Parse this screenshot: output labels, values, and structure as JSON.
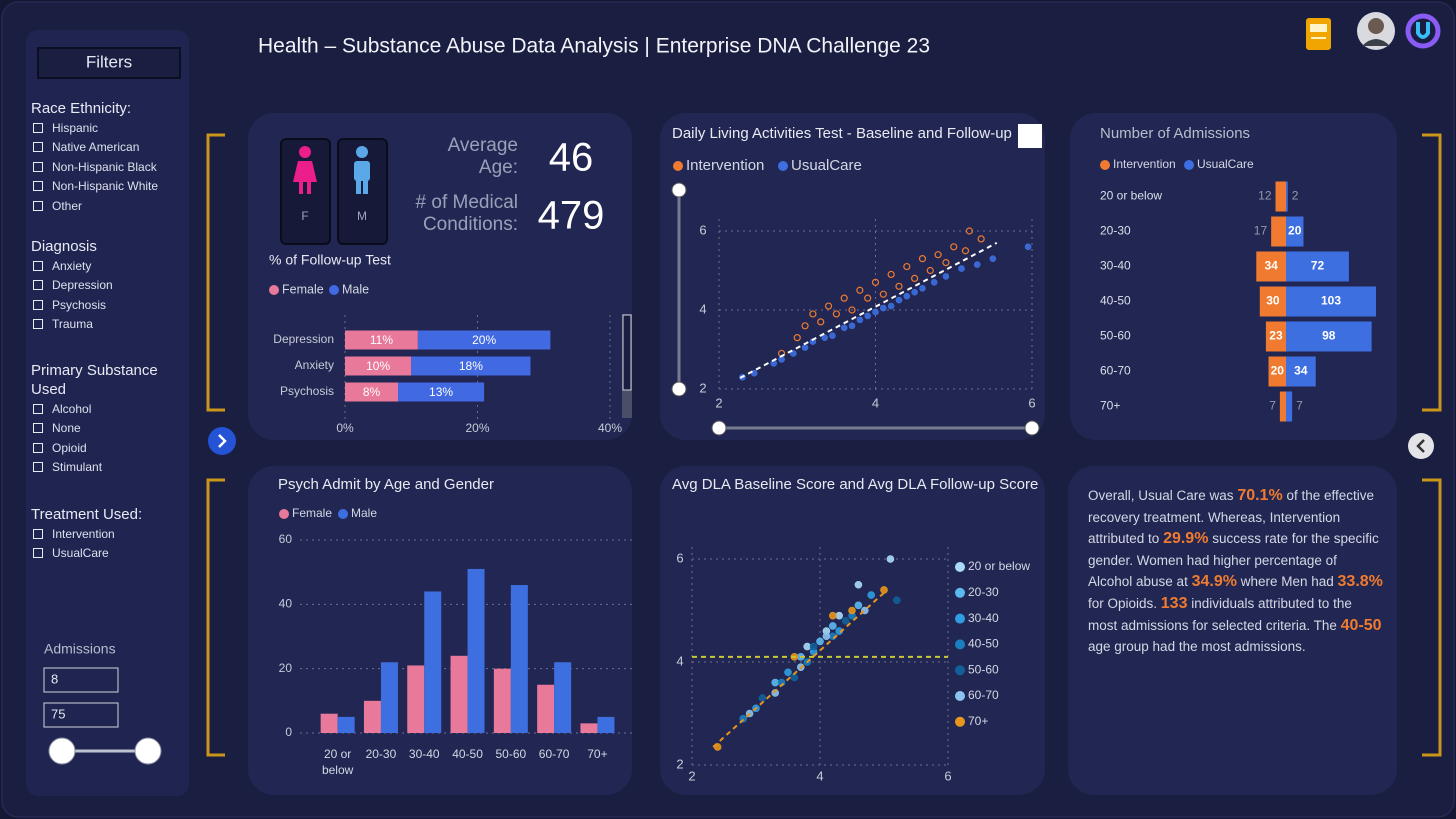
{
  "header": {
    "title": "Health – Substance Abuse Data Analysis | Enterprise DNA Challenge 23"
  },
  "filters": {
    "title": "Filters",
    "groups": [
      {
        "label": "Race Ethnicity:",
        "options": [
          "Hispanic",
          "Native American",
          "Non-Hispanic Black",
          "Non-Hispanic White",
          "Other"
        ]
      },
      {
        "label": "Diagnosis",
        "options": [
          "Anxiety",
          "Depression",
          "Psychosis",
          "Trauma"
        ]
      },
      {
        "label": "Primary Substance Used",
        "options": [
          "Alcohol",
          "None",
          "Opioid",
          "Stimulant"
        ]
      },
      {
        "label": "Treatment Used:",
        "options": [
          "Intervention",
          "UsualCare"
        ]
      }
    ],
    "admissions": {
      "label": "Admissions",
      "min": 8,
      "max": 75
    }
  },
  "gender_icons": [
    "F",
    "M"
  ],
  "kpis": [
    {
      "label": "Average Age:",
      "value": 46
    },
    {
      "label": "# of Medical Conditions:",
      "value": 479
    }
  ],
  "chart_data": [
    {
      "type": "bar",
      "orientation": "horizontal",
      "stacked": true,
      "title": "% of Follow-up Test",
      "categories": [
        "Depression",
        "Anxiety",
        "Psychosis"
      ],
      "series": [
        {
          "name": "Female",
          "color": "#e8799b",
          "values": [
            11,
            10,
            8
          ],
          "value_labels": [
            "11%",
            "10%",
            "8%"
          ]
        },
        {
          "name": "Male",
          "color": "#4169e1",
          "values": [
            20,
            18,
            13
          ],
          "value_labels": [
            "20%",
            "18%",
            "13%"
          ]
        }
      ],
      "xlim": [
        0,
        40
      ],
      "xticks": [
        {
          "value": 0,
          "label": "0%"
        },
        {
          "value": 20,
          "label": "20%"
        },
        {
          "value": 40,
          "label": "40%"
        }
      ],
      "grid": true
    },
    {
      "type": "scatter",
      "title": "Daily Living Activities Test - Baseline and Follow-up",
      "series": [
        {
          "name": "Intervention",
          "color": "#f07a2f",
          "marker": "open",
          "x": [
            2.8,
            3.0,
            3.1,
            3.2,
            3.3,
            3.4,
            3.5,
            3.6,
            3.7,
            3.8,
            3.9,
            4.0,
            4.1,
            4.2,
            4.3,
            4.4,
            4.5,
            4.6,
            4.7,
            4.8,
            4.9,
            5.0,
            5.15,
            5.2,
            5.35
          ],
          "y": [
            2.9,
            3.3,
            3.6,
            3.9,
            3.7,
            4.1,
            3.9,
            4.3,
            4.0,
            4.5,
            4.3,
            4.7,
            4.4,
            4.9,
            4.6,
            5.1,
            4.8,
            5.3,
            5.0,
            5.4,
            5.2,
            5.6,
            5.5,
            6.0,
            5.8
          ]
        },
        {
          "name": "UsualCare",
          "color": "#3d6fe0",
          "marker": "filled",
          "x": [
            2.3,
            2.45,
            2.7,
            2.8,
            2.95,
            3.1,
            3.2,
            3.35,
            3.45,
            3.6,
            3.7,
            3.8,
            3.9,
            4.0,
            4.1,
            4.2,
            4.3,
            4.4,
            4.5,
            4.6,
            4.75,
            4.9,
            5.1,
            5.3,
            5.5,
            5.95
          ],
          "y": [
            2.3,
            2.4,
            2.65,
            2.75,
            2.9,
            3.05,
            3.2,
            3.3,
            3.35,
            3.55,
            3.6,
            3.75,
            3.85,
            3.95,
            4.05,
            4.1,
            4.25,
            4.35,
            4.45,
            4.55,
            4.7,
            4.85,
            5.05,
            5.15,
            5.3,
            5.6
          ]
        }
      ],
      "reference_lines": [
        {
          "color": "#ffffff",
          "x": [
            2.27,
            5.55
          ],
          "y": [
            2.28,
            5.7
          ]
        }
      ],
      "xlim": [
        2,
        6
      ],
      "ylim": [
        2,
        6
      ],
      "xticks": [
        2,
        4,
        6
      ],
      "yticks": [
        2,
        4,
        6
      ],
      "grid": true
    },
    {
      "type": "bar",
      "orientation": "horizontal",
      "diverging": true,
      "title": "Number of Admissions",
      "categories": [
        "20 or below",
        "20-30",
        "30-40",
        "40-50",
        "50-60",
        "60-70",
        "70+"
      ],
      "series": [
        {
          "name": "Intervention",
          "color": "#f07a2f",
          "values": [
            12,
            17,
            34,
            30,
            23,
            20,
            7
          ]
        },
        {
          "name": "UsualCare",
          "color": "#3d6fe0",
          "values": [
            2,
            20,
            72,
            103,
            98,
            34,
            7
          ]
        }
      ]
    },
    {
      "type": "bar",
      "title": "Psych Admit by Age and Gender",
      "categories": [
        "20 or below",
        "20-30",
        "30-40",
        "40-50",
        "50-60",
        "60-70",
        "70+"
      ],
      "series": [
        {
          "name": "Female",
          "color": "#e8799b",
          "values": [
            6,
            10,
            21,
            24,
            20,
            15,
            3
          ]
        },
        {
          "name": "Male",
          "color": "#3d6fe0",
          "values": [
            5,
            22,
            44,
            51,
            46,
            22,
            5
          ]
        }
      ],
      "ylim": [
        0,
        60
      ],
      "yticks": [
        0,
        20,
        40,
        60
      ],
      "grid": true
    },
    {
      "type": "scatter",
      "title": "Avg DLA Baseline Score and Avg DLA Follow-up Score",
      "series": [
        {
          "name": "20 or below",
          "color": "#a9dbf7",
          "marker": "filled",
          "x": [
            3.8,
            4.1,
            4.3,
            4.6,
            5.1
          ],
          "y": [
            4.3,
            4.6,
            4.9,
            5.5,
            6.0
          ]
        },
        {
          "name": "20-30",
          "color": "#5cb9ef",
          "marker": "filled",
          "x": [
            3.3,
            3.7,
            4.0,
            4.2,
            4.6
          ],
          "y": [
            3.6,
            4.1,
            4.4,
            4.7,
            5.1
          ]
        },
        {
          "name": "30-40",
          "color": "#2f9de0",
          "marker": "filled",
          "x": [
            3.0,
            3.5,
            3.9,
            4.3,
            4.8
          ],
          "y": [
            3.1,
            3.8,
            4.2,
            4.6,
            5.3
          ]
        },
        {
          "name": "40-50",
          "color": "#1a7fc0",
          "marker": "filled",
          "x": [
            2.8,
            3.4,
            3.8,
            4.2,
            4.5
          ],
          "y": [
            2.9,
            3.6,
            4.0,
            4.5,
            4.9
          ]
        },
        {
          "name": "50-60",
          "color": "#12609a",
          "marker": "filled",
          "x": [
            3.1,
            3.6,
            3.9,
            4.4,
            5.2
          ],
          "y": [
            3.3,
            3.7,
            4.3,
            4.8,
            5.2
          ]
        },
        {
          "name": "60-70",
          "color": "#8cc4f0",
          "marker": "filled",
          "x": [
            2.9,
            3.3,
            3.7,
            4.1,
            4.7
          ],
          "y": [
            3.0,
            3.4,
            3.9,
            4.5,
            5.0
          ]
        },
        {
          "name": "70+",
          "color": "#e8961c",
          "marker": "filled",
          "x": [
            2.4,
            3.6,
            4.2,
            4.5,
            5.0
          ],
          "y": [
            2.35,
            4.1,
            4.9,
            5.0,
            5.4
          ]
        }
      ],
      "reference_lines": [
        {
          "color": "#e8961c",
          "x": [
            2.33,
            5.05
          ],
          "y": [
            2.35,
            5.4
          ]
        },
        {
          "color": "#c9c832",
          "x": [
            2,
            6
          ],
          "y": [
            4.1,
            4.1
          ]
        }
      ],
      "xlim": [
        2,
        6
      ],
      "ylim": [
        2,
        6
      ],
      "xticks": [
        2,
        4,
        6
      ],
      "yticks": [
        2,
        4,
        6
      ],
      "grid": true
    }
  ],
  "summary": [
    {
      "text": "Overall, Usual Care was "
    },
    {
      "text": "70.1%",
      "emphasis": true
    },
    {
      "text": " of the effective recovery treatment. Whereas, Intervention attributed to "
    },
    {
      "text": "29.9%",
      "emphasis": true
    },
    {
      "text": " success rate for the specific gender. Women had higher percentage of Alcohol abuse at "
    },
    {
      "text": "34.9%",
      "emphasis": true
    },
    {
      "text": " where Men had "
    },
    {
      "text": "33.8%",
      "emphasis": true
    },
    {
      "text": " for Opioids. "
    },
    {
      "text": "133",
      "emphasis": true
    },
    {
      "text": " individuals attributed to the most admissions for selected criteria. The "
    },
    {
      "text": "40-50",
      "emphasis": true
    },
    {
      "text": " age group had the most admissions."
    }
  ]
}
